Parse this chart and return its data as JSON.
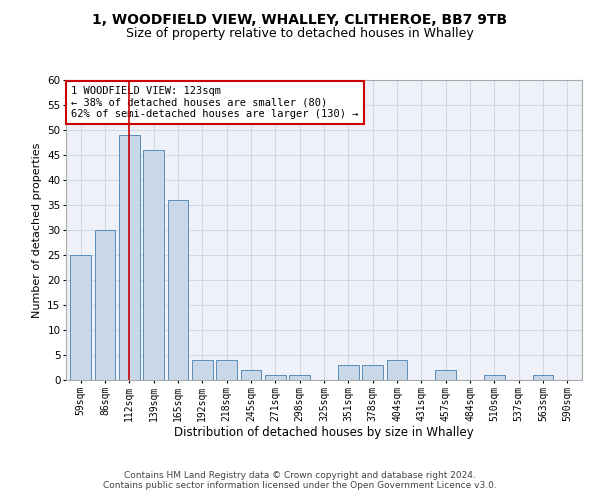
{
  "title1": "1, WOODFIELD VIEW, WHALLEY, CLITHEROE, BB7 9TB",
  "title2": "Size of property relative to detached houses in Whalley",
  "xlabel": "Distribution of detached houses by size in Whalley",
  "ylabel": "Number of detached properties",
  "categories": [
    "59sqm",
    "86sqm",
    "112sqm",
    "139sqm",
    "165sqm",
    "192sqm",
    "218sqm",
    "245sqm",
    "271sqm",
    "298sqm",
    "325sqm",
    "351sqm",
    "378sqm",
    "404sqm",
    "431sqm",
    "457sqm",
    "484sqm",
    "510sqm",
    "537sqm",
    "563sqm",
    "590sqm"
  ],
  "values": [
    25,
    30,
    49,
    46,
    36,
    4,
    4,
    2,
    1,
    1,
    0,
    3,
    3,
    4,
    0,
    2,
    0,
    1,
    0,
    1,
    0
  ],
  "bar_color": "#c8d8e8",
  "bar_edge_color": "#5b8db8",
  "vline_x": 2,
  "vline_color": "#cc0000",
  "annotation_text": "1 WOODFIELD VIEW: 123sqm\n← 38% of detached houses are smaller (80)\n62% of semi-detached houses are larger (130) →",
  "annotation_box_color": "#ffffff",
  "annotation_box_edge": "#cc0000",
  "ylim": [
    0,
    60
  ],
  "yticks": [
    0,
    5,
    10,
    15,
    20,
    25,
    30,
    35,
    40,
    45,
    50,
    55,
    60
  ],
  "grid_color": "#d0d8e8",
  "background_color": "#eef2f8",
  "footer": "Contains HM Land Registry data © Crown copyright and database right 2024.\nContains public sector information licensed under the Open Government Licence v3.0.",
  "title1_fontsize": 10,
  "title2_fontsize": 9,
  "xlabel_fontsize": 8.5,
  "ylabel_fontsize": 8
}
